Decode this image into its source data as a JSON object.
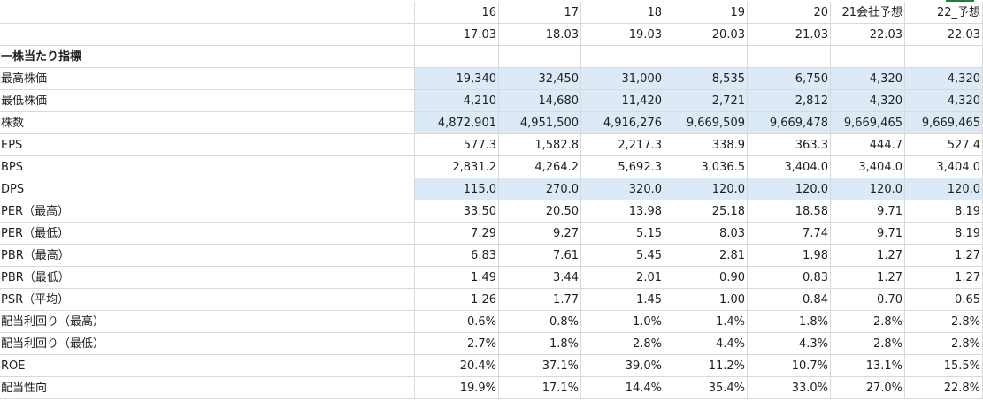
{
  "columns": [
    {
      "period": "16",
      "fy": "17.03"
    },
    {
      "period": "17",
      "fy": "18.03"
    },
    {
      "period": "18",
      "fy": "19.03"
    },
    {
      "period": "19",
      "fy": "20.03"
    },
    {
      "period": "20",
      "fy": "21.03"
    },
    {
      "period": "21会社予想",
      "fy": "22.03"
    },
    {
      "period": "22_予想",
      "fy": "22.03"
    }
  ],
  "section_title": "一株当たり指標",
  "rows": [
    {
      "label": "最高株価",
      "highlight": true,
      "values": [
        "19,340",
        "32,450",
        "31,000",
        "8,535",
        "6,750",
        "4,320",
        "4,320"
      ]
    },
    {
      "label": "最低株価",
      "highlight": true,
      "values": [
        "4,210",
        "14,680",
        "11,420",
        "2,721",
        "2,812",
        "4,320",
        "4,320"
      ]
    },
    {
      "label": "株数",
      "highlight": true,
      "values": [
        "4,872,901",
        "4,951,500",
        "4,916,276",
        "9,669,509",
        "9,669,478",
        "9,669,465",
        "9,669,465"
      ]
    },
    {
      "label": "EPS",
      "highlight": false,
      "values": [
        "577.3",
        "1,582.8",
        "2,217.3",
        "338.9",
        "363.3",
        "444.7",
        "527.4"
      ]
    },
    {
      "label": "BPS",
      "highlight": false,
      "values": [
        "2,831.2",
        "4,264.2",
        "5,692.3",
        "3,036.5",
        "3,404.0",
        "3,404.0",
        "3,404.0"
      ]
    },
    {
      "label": "DPS",
      "highlight": true,
      "values": [
        "115.0",
        "270.0",
        "320.0",
        "120.0",
        "120.0",
        "120.0",
        "120.0"
      ]
    },
    {
      "label": "PER（最高）",
      "highlight": false,
      "values": [
        "33.50",
        "20.50",
        "13.98",
        "25.18",
        "18.58",
        "9.71",
        "8.19"
      ]
    },
    {
      "label": "PER（最低）",
      "highlight": false,
      "values": [
        "7.29",
        "9.27",
        "5.15",
        "8.03",
        "7.74",
        "9.71",
        "8.19"
      ]
    },
    {
      "label": "PBR（最高）",
      "highlight": false,
      "values": [
        "6.83",
        "7.61",
        "5.45",
        "2.81",
        "1.98",
        "1.27",
        "1.27"
      ]
    },
    {
      "label": "PBR（最低）",
      "highlight": false,
      "values": [
        "1.49",
        "3.44",
        "2.01",
        "0.90",
        "0.83",
        "1.27",
        "1.27"
      ]
    },
    {
      "label": "PSR（平均）",
      "highlight": false,
      "values": [
        "1.26",
        "1.77",
        "1.45",
        "1.00",
        "0.84",
        "0.70",
        "0.65"
      ]
    },
    {
      "label": "配当利回り（最高）",
      "highlight": false,
      "values": [
        "0.6%",
        "0.8%",
        "1.0%",
        "1.4%",
        "1.8%",
        "2.8%",
        "2.8%"
      ]
    },
    {
      "label": "配当利回り（最低）",
      "highlight": false,
      "values": [
        "2.7%",
        "1.8%",
        "2.8%",
        "4.4%",
        "4.3%",
        "2.8%",
        "2.8%"
      ]
    },
    {
      "label": "ROE",
      "highlight": false,
      "values": [
        "20.4%",
        "37.1%",
        "39.0%",
        "11.2%",
        "10.7%",
        "13.1%",
        "15.5%"
      ]
    },
    {
      "label": "配当性向",
      "highlight": false,
      "values": [
        "19.9%",
        "17.1%",
        "14.4%",
        "35.4%",
        "33.0%",
        "27.0%",
        "22.8%"
      ]
    }
  ],
  "colors": {
    "highlight": "#dce9f6",
    "grid": "#d9d9d9",
    "selection": "#1e7e45"
  }
}
